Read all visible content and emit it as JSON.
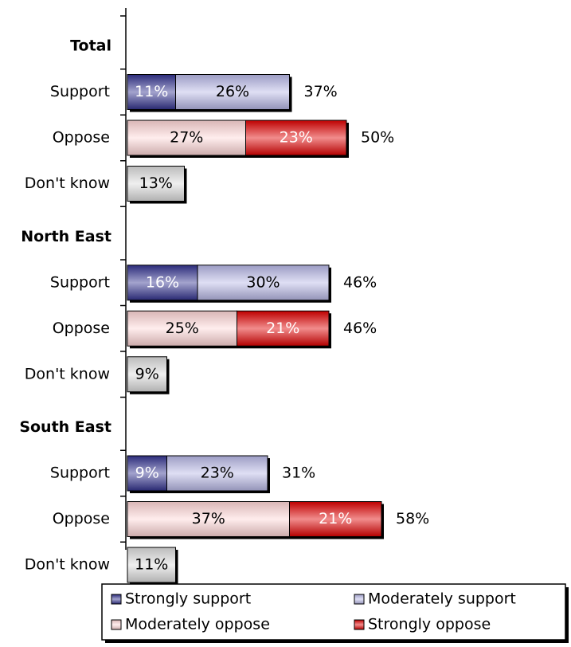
{
  "chart_data": {
    "type": "bar",
    "orientation": "horizontal",
    "stacked": true,
    "groups": [
      {
        "name": "Total",
        "rows": [
          {
            "label": "Support",
            "segments": [
              11,
              26
            ],
            "total_label": "37%"
          },
          {
            "label": "Oppose",
            "segments": [
              27,
              23
            ],
            "total_label": "50%"
          },
          {
            "label": "Don't know",
            "segments": [
              13
            ],
            "total_label": ""
          }
        ]
      },
      {
        "name": "North East",
        "rows": [
          {
            "label": "Support",
            "segments": [
              16,
              30
            ],
            "total_label": "46%"
          },
          {
            "label": "Oppose",
            "segments": [
              25,
              21
            ],
            "total_label": "46%"
          },
          {
            "label": "Don't know",
            "segments": [
              9
            ],
            "total_label": ""
          }
        ]
      },
      {
        "name": "South East",
        "rows": [
          {
            "label": "Support",
            "segments": [
              9,
              23
            ],
            "total_label": "31%"
          },
          {
            "label": "Oppose",
            "segments": [
              37,
              21
            ],
            "total_label": "58%"
          },
          {
            "label": "Don't know",
            "segments": [
              11
            ],
            "total_label": ""
          }
        ]
      }
    ],
    "series_styles": {
      "Support": [
        {
          "name": "Strongly support",
          "color": "#33338f",
          "text_color": "#ffffff"
        },
        {
          "name": "Moderately support",
          "color": "#b8b8e6",
          "text_color": "#000000"
        }
      ],
      "Oppose": [
        {
          "name": "Moderately oppose",
          "color": "#ffd6d6",
          "text_color": "#000000"
        },
        {
          "name": "Strongly oppose",
          "color": "#e00000",
          "text_color": "#ffffff"
        }
      ],
      "Don't know": [
        {
          "name": "Don't know",
          "color": "#dcdcdc",
          "text_color": "#000000"
        }
      ]
    },
    "legend": {
      "position": "bottom-right",
      "items": [
        {
          "name": "Strongly support",
          "color": "#33338f"
        },
        {
          "name": "Moderately support",
          "color": "#b8b8e6"
        },
        {
          "name": "Moderately oppose",
          "color": "#ffd6d6"
        },
        {
          "name": "Strongly oppose",
          "color": "#e00000"
        }
      ]
    },
    "value_suffix": "%",
    "xlim": [
      0,
      60
    ],
    "grid": false
  }
}
